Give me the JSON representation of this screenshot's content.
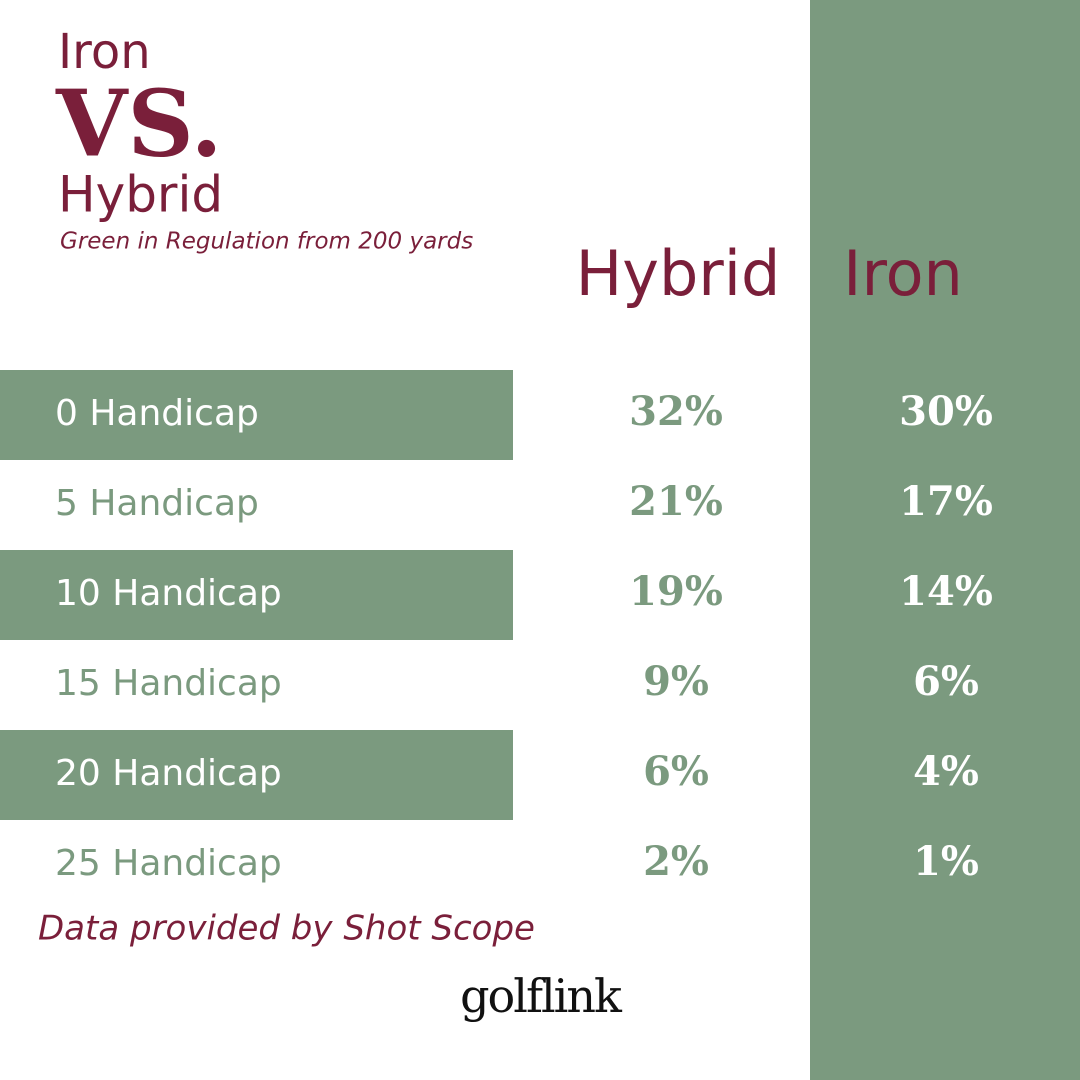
{
  "header": {
    "title_line1": "Iron",
    "title_line2": "VS.",
    "title_line3": "Hybrid",
    "subtitle": "Green in Regulation from 200 yards"
  },
  "table": {
    "columns": [
      "Hybrid",
      "Iron"
    ],
    "rows": [
      [
        "0 Handicap",
        "32%",
        "30%"
      ],
      [
        "5 Handicap",
        "21%",
        "17%"
      ],
      [
        "10 Handicap",
        "19%",
        "14%"
      ],
      [
        "15 Handicap",
        "9%",
        "6%"
      ],
      [
        "20 Handicap",
        "6%",
        "4%"
      ],
      [
        "25 Handicap",
        "2%",
        "1%"
      ]
    ]
  },
  "footer": {
    "note": "Data provided by Shot Scope",
    "logo": "golflink"
  }
}
